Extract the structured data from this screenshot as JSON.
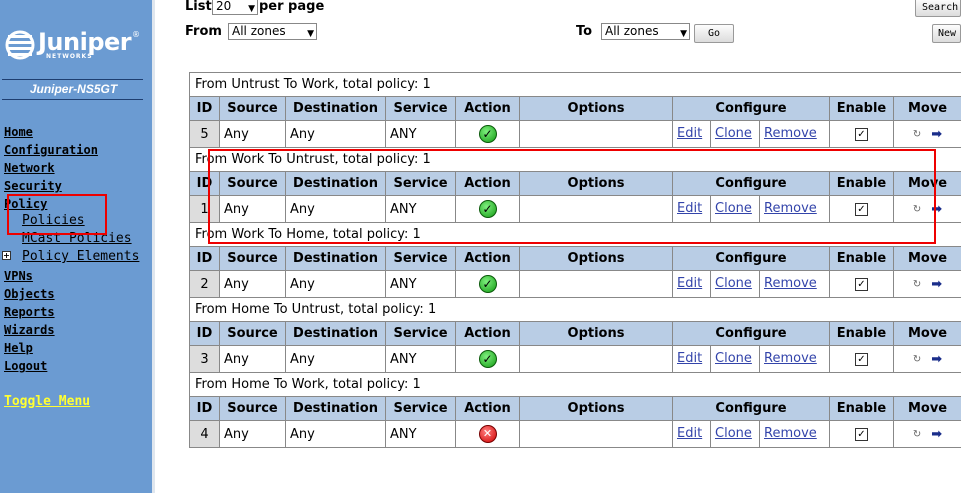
{
  "sidebar": {
    "brand": "Juniper",
    "brand_sub": "NETWORKS",
    "device_name": "Juniper-NS5GT",
    "nav": [
      {
        "label": "Home"
      },
      {
        "label": "Configuration"
      },
      {
        "label": "Network"
      },
      {
        "label": "Security"
      },
      {
        "label": "Policy"
      }
    ],
    "policy_sub": [
      {
        "label": "Policies"
      },
      {
        "label": "MCast Policies"
      },
      {
        "label": "Policy Elements"
      }
    ],
    "nav2": [
      {
        "label": "VPNs"
      },
      {
        "label": "Objects"
      },
      {
        "label": "Reports"
      },
      {
        "label": "Wizards"
      },
      {
        "label": "Help"
      },
      {
        "label": "Logout"
      }
    ],
    "toggle_menu": "Toggle Menu"
  },
  "controls": {
    "list_label": "List",
    "list_value": "20",
    "per_page": "per page",
    "from_label": "From",
    "from_value": "All zones",
    "to_label": "To",
    "to_value": "All zones",
    "go_button": "Go",
    "search_button": "Search",
    "new_button": "New"
  },
  "table": {
    "headers": [
      "ID",
      "Source",
      "Destination",
      "Service",
      "Action",
      "Options",
      "Configure",
      "Enable",
      "Move"
    ],
    "configure_links": {
      "edit": "Edit",
      "clone": "Clone",
      "remove": "Remove"
    },
    "groups": [
      {
        "title": "From Untrust To Work, total policy: 1",
        "row": {
          "id": "5",
          "source": "Any",
          "destination": "Any",
          "service": "ANY",
          "action": "permit",
          "enabled": true
        }
      },
      {
        "title": "From Work To Untrust, total policy: 1",
        "row": {
          "id": "1",
          "source": "Any",
          "destination": "Any",
          "service": "ANY",
          "action": "permit",
          "enabled": true
        }
      },
      {
        "title": "From Work To Home, total policy: 1",
        "row": {
          "id": "2",
          "source": "Any",
          "destination": "Any",
          "service": "ANY",
          "action": "permit",
          "enabled": true
        }
      },
      {
        "title": "From Home To Untrust, total policy: 1",
        "row": {
          "id": "3",
          "source": "Any",
          "destination": "Any",
          "service": "ANY",
          "action": "permit",
          "enabled": true
        }
      },
      {
        "title": "From Home To Work, total policy: 1",
        "row": {
          "id": "4",
          "source": "Any",
          "destination": "Any",
          "service": "ANY",
          "action": "deny",
          "enabled": true
        }
      }
    ]
  },
  "colors": {
    "sidebar_bg": "#6b9bd2",
    "header_bg": "#b9cde5",
    "highlight": "#e00000",
    "toggle": "#ffff33"
  }
}
